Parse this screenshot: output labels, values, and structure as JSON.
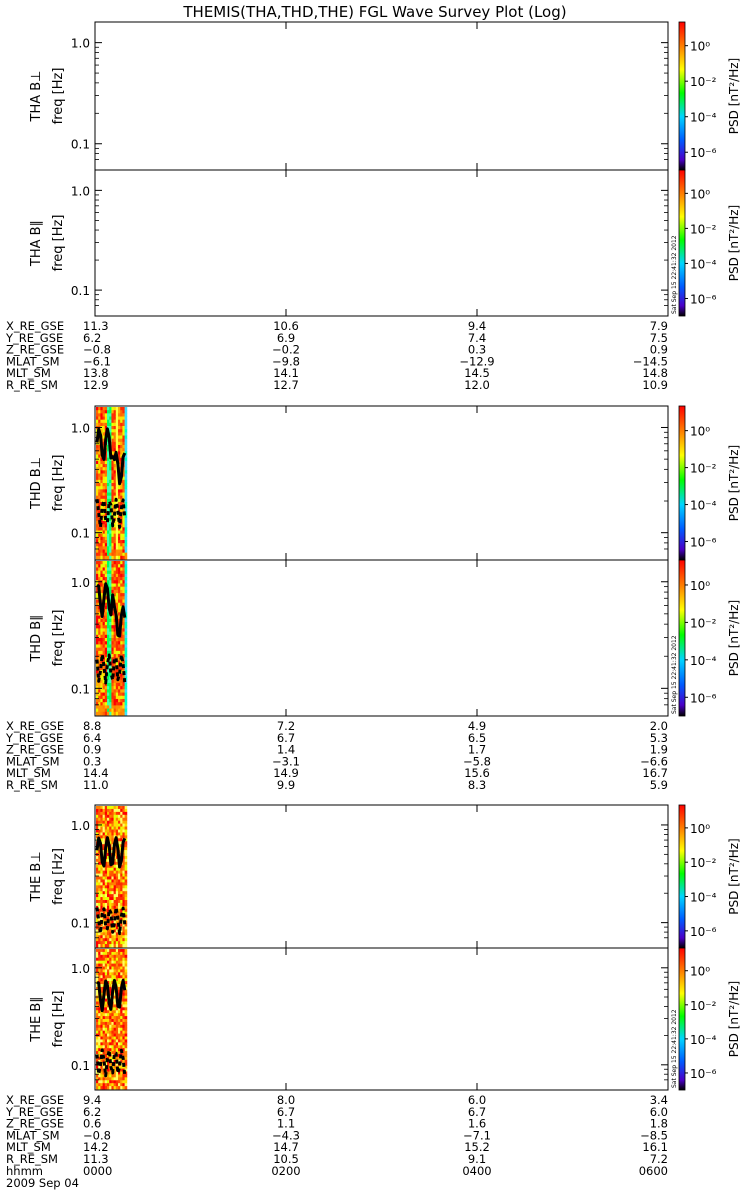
{
  "title": "THEMIS(THA,THD,THE) FGL Wave Survey Plot (Log)",
  "colorbar": {
    "label": "PSD [nT²/Hz]",
    "ticks": [
      "10⁰",
      "10⁻²",
      "10⁻⁴",
      "10⁻⁶"
    ],
    "colors": [
      "#ff0000",
      "#ff8c00",
      "#ffff00",
      "#00ff00",
      "#00d5ff",
      "#005aff",
      "#4b00c8",
      "#000000"
    ]
  },
  "stamp": "Sat Sep 15 22:41:32 2012",
  "panel_ylabels": {
    "freq": "freq [Hz]",
    "ticks": [
      "1.0",
      "0.1"
    ]
  },
  "chart_data": {
    "type": "heatmap",
    "x_ticks": [
      "0000",
      "0200",
      "0400",
      "0600"
    ],
    "x_axis_label": "hhmm",
    "date": "2009 Sep 04",
    "ylim": [
      0.055,
      1.6
    ],
    "y_scale": "log",
    "probes": [
      {
        "id": "THA",
        "panels": [
          {
            "label": "THA B⊥",
            "has_data": false,
            "stamp": false
          },
          {
            "label": "THA B∥",
            "has_data": false,
            "stamp": true
          }
        ],
        "ephemeris": [
          {
            "name": "X_RE_GSE",
            "values": [
              "11.3",
              "10.6",
              "9.4",
              "7.9"
            ]
          },
          {
            "name": "Y_RE_GSE",
            "values": [
              "6.2",
              "6.9",
              "7.4",
              "7.5"
            ]
          },
          {
            "name": "Z_RE_GSE",
            "values": [
              "−0.8",
              "−0.2",
              "0.3",
              "0.9"
            ]
          },
          {
            "name": "MLAT_SM",
            "values": [
              "−6.1",
              "−9.8",
              "−12.9",
              "−14.5"
            ]
          },
          {
            "name": "MLT_SM",
            "values": [
              "13.8",
              "14.1",
              "14.5",
              "14.8"
            ]
          },
          {
            "name": "R_RE_SM",
            "values": [
              "12.9",
              "12.7",
              "12.0",
              "10.9"
            ]
          }
        ]
      },
      {
        "id": "THD",
        "panels": [
          {
            "label": "THD B⊥",
            "has_data": true,
            "stamp": false
          },
          {
            "label": "THD B∥",
            "has_data": true,
            "stamp": true
          }
        ],
        "data_end_hhmm": "0020",
        "ephemeris": [
          {
            "name": "X_RE_GSE",
            "values": [
              "8.8",
              "7.2",
              "4.9",
              "2.0"
            ]
          },
          {
            "name": "Y_RE_GSE",
            "values": [
              "6.4",
              "6.7",
              "6.5",
              "5.3"
            ]
          },
          {
            "name": "Z_RE_GSE",
            "values": [
              "0.9",
              "1.4",
              "1.7",
              "1.9"
            ]
          },
          {
            "name": "MLAT_SM",
            "values": [
              "0.3",
              "−3.1",
              "−5.8",
              "−6.6"
            ]
          },
          {
            "name": "MLT_SM",
            "values": [
              "14.4",
              "14.9",
              "15.6",
              "16.7"
            ]
          },
          {
            "name": "R_RE_SM",
            "values": [
              "11.0",
              "9.9",
              "8.3",
              "5.9"
            ]
          }
        ]
      },
      {
        "id": "THE",
        "panels": [
          {
            "label": "THE B⊥",
            "has_data": true,
            "stamp": false
          },
          {
            "label": "THE B∥",
            "has_data": true,
            "stamp": true
          }
        ],
        "data_end_hhmm": "0020",
        "ephemeris": [
          {
            "name": "X_RE_GSE",
            "values": [
              "9.4",
              "8.0",
              "6.0",
              "3.4"
            ]
          },
          {
            "name": "Y_RE_GSE",
            "values": [
              "6.2",
              "6.7",
              "6.7",
              "6.0"
            ]
          },
          {
            "name": "Z_RE_GSE",
            "values": [
              "0.6",
              "1.1",
              "1.6",
              "1.8"
            ]
          },
          {
            "name": "MLAT_SM",
            "values": [
              "−0.8",
              "−4.3",
              "−7.1",
              "−8.5"
            ]
          },
          {
            "name": "MLT_SM",
            "values": [
              "14.2",
              "14.7",
              "15.2",
              "16.1"
            ]
          },
          {
            "name": "R_RE_SM",
            "values": [
              "11.3",
              "10.5",
              "9.1",
              "7.2"
            ]
          }
        ]
      }
    ]
  }
}
